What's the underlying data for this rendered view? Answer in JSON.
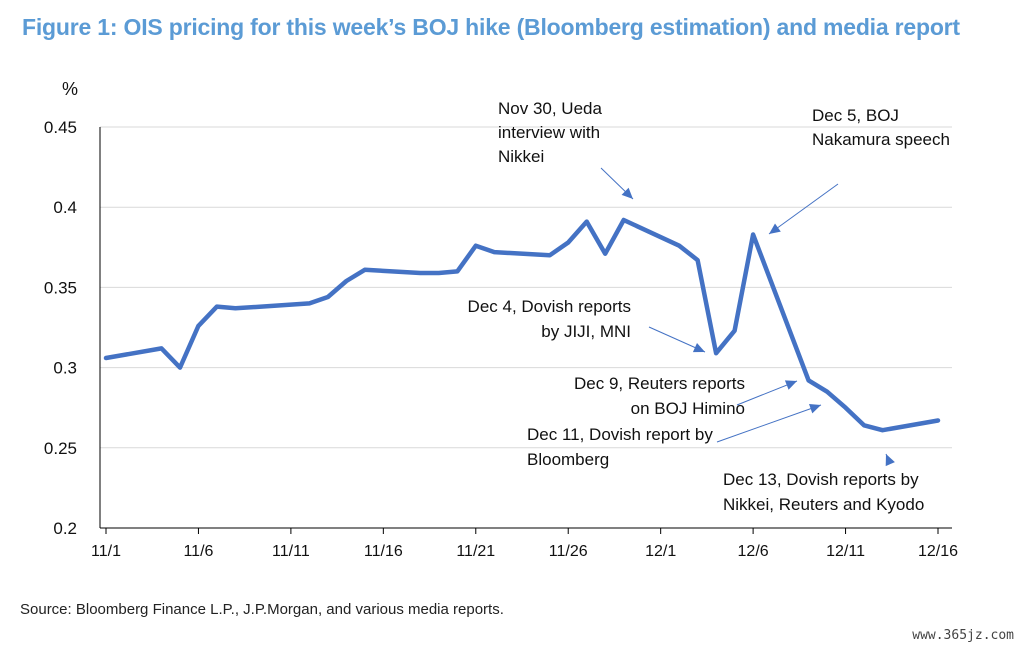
{
  "title": "Figure 1: OIS pricing for this week’s BOJ hike (Bloomberg estimation) and media report",
  "source": "Source: Bloomberg Finance L.P., J.P.Morgan, and various media reports.",
  "watermark": "www.365jz.com",
  "colors": {
    "title": "#5B9BD5",
    "line": "#4472C4",
    "grid": "#d9d9d9",
    "arrow": "#4472C4"
  },
  "chart_data": {
    "type": "line",
    "title": "Figure 1: OIS pricing for this week’s BOJ hike (Bloomberg estimation) and media report",
    "ylabel": "%",
    "xlabel": "",
    "ylim": [
      0.2,
      0.45
    ],
    "yticks": [
      0.45,
      0.4,
      0.35,
      0.3,
      0.25,
      0.2
    ],
    "ytick_labels": [
      "0.45",
      "0.4",
      "0.35",
      "0.3",
      "0.25",
      "0.2"
    ],
    "xlim": [
      "11/1",
      "12/16"
    ],
    "xtick_labels": [
      "11/1",
      "11/6",
      "11/11",
      "11/16",
      "11/21",
      "11/26",
      "12/1",
      "12/6",
      "12/11",
      "12/16"
    ],
    "grid": true,
    "series": [
      {
        "x": [
          "11/1",
          "11/4",
          "11/5",
          "11/6",
          "11/7",
          "11/8",
          "11/12",
          "11/13",
          "11/14",
          "11/15",
          "11/18",
          "11/19",
          "11/20",
          "11/21",
          "11/22",
          "11/25",
          "11/26",
          "11/27",
          "11/28",
          "11/29",
          "12/2",
          "12/3",
          "12/4",
          "12/5",
          "12/6",
          "12/9",
          "12/10",
          "12/11",
          "12/12",
          "12/13",
          "12/16"
        ],
        "values": [
          0.306,
          0.312,
          0.3,
          0.326,
          0.338,
          0.337,
          0.34,
          0.344,
          0.354,
          0.361,
          0.359,
          0.359,
          0.36,
          0.376,
          0.372,
          0.37,
          0.378,
          0.391,
          0.371,
          0.392,
          0.376,
          0.367,
          0.309,
          0.323,
          0.383,
          0.292,
          0.285,
          0.275,
          0.264,
          0.261,
          0.267
        ]
      }
    ],
    "annotations": [
      {
        "text_lines": [
          "Nov 30, Ueda",
          "interview with",
          "Nikkei"
        ]
      },
      {
        "text_lines": [
          "Dec 5, BOJ",
          "Nakamura speech"
        ]
      },
      {
        "text_lines": [
          "Dec 4, Dovish  reports",
          "by JIJI, MNI"
        ]
      },
      {
        "text_lines": [
          "Dec 9, Reuters reports",
          "on BOJ Himino"
        ]
      },
      {
        "text_lines": [
          "Dec 11, Dovish report by",
          "Bloomberg"
        ]
      },
      {
        "text_lines": [
          "Dec 13, Dovish reports by",
          "Nikkei, Reuters and Kyodo"
        ]
      }
    ]
  }
}
